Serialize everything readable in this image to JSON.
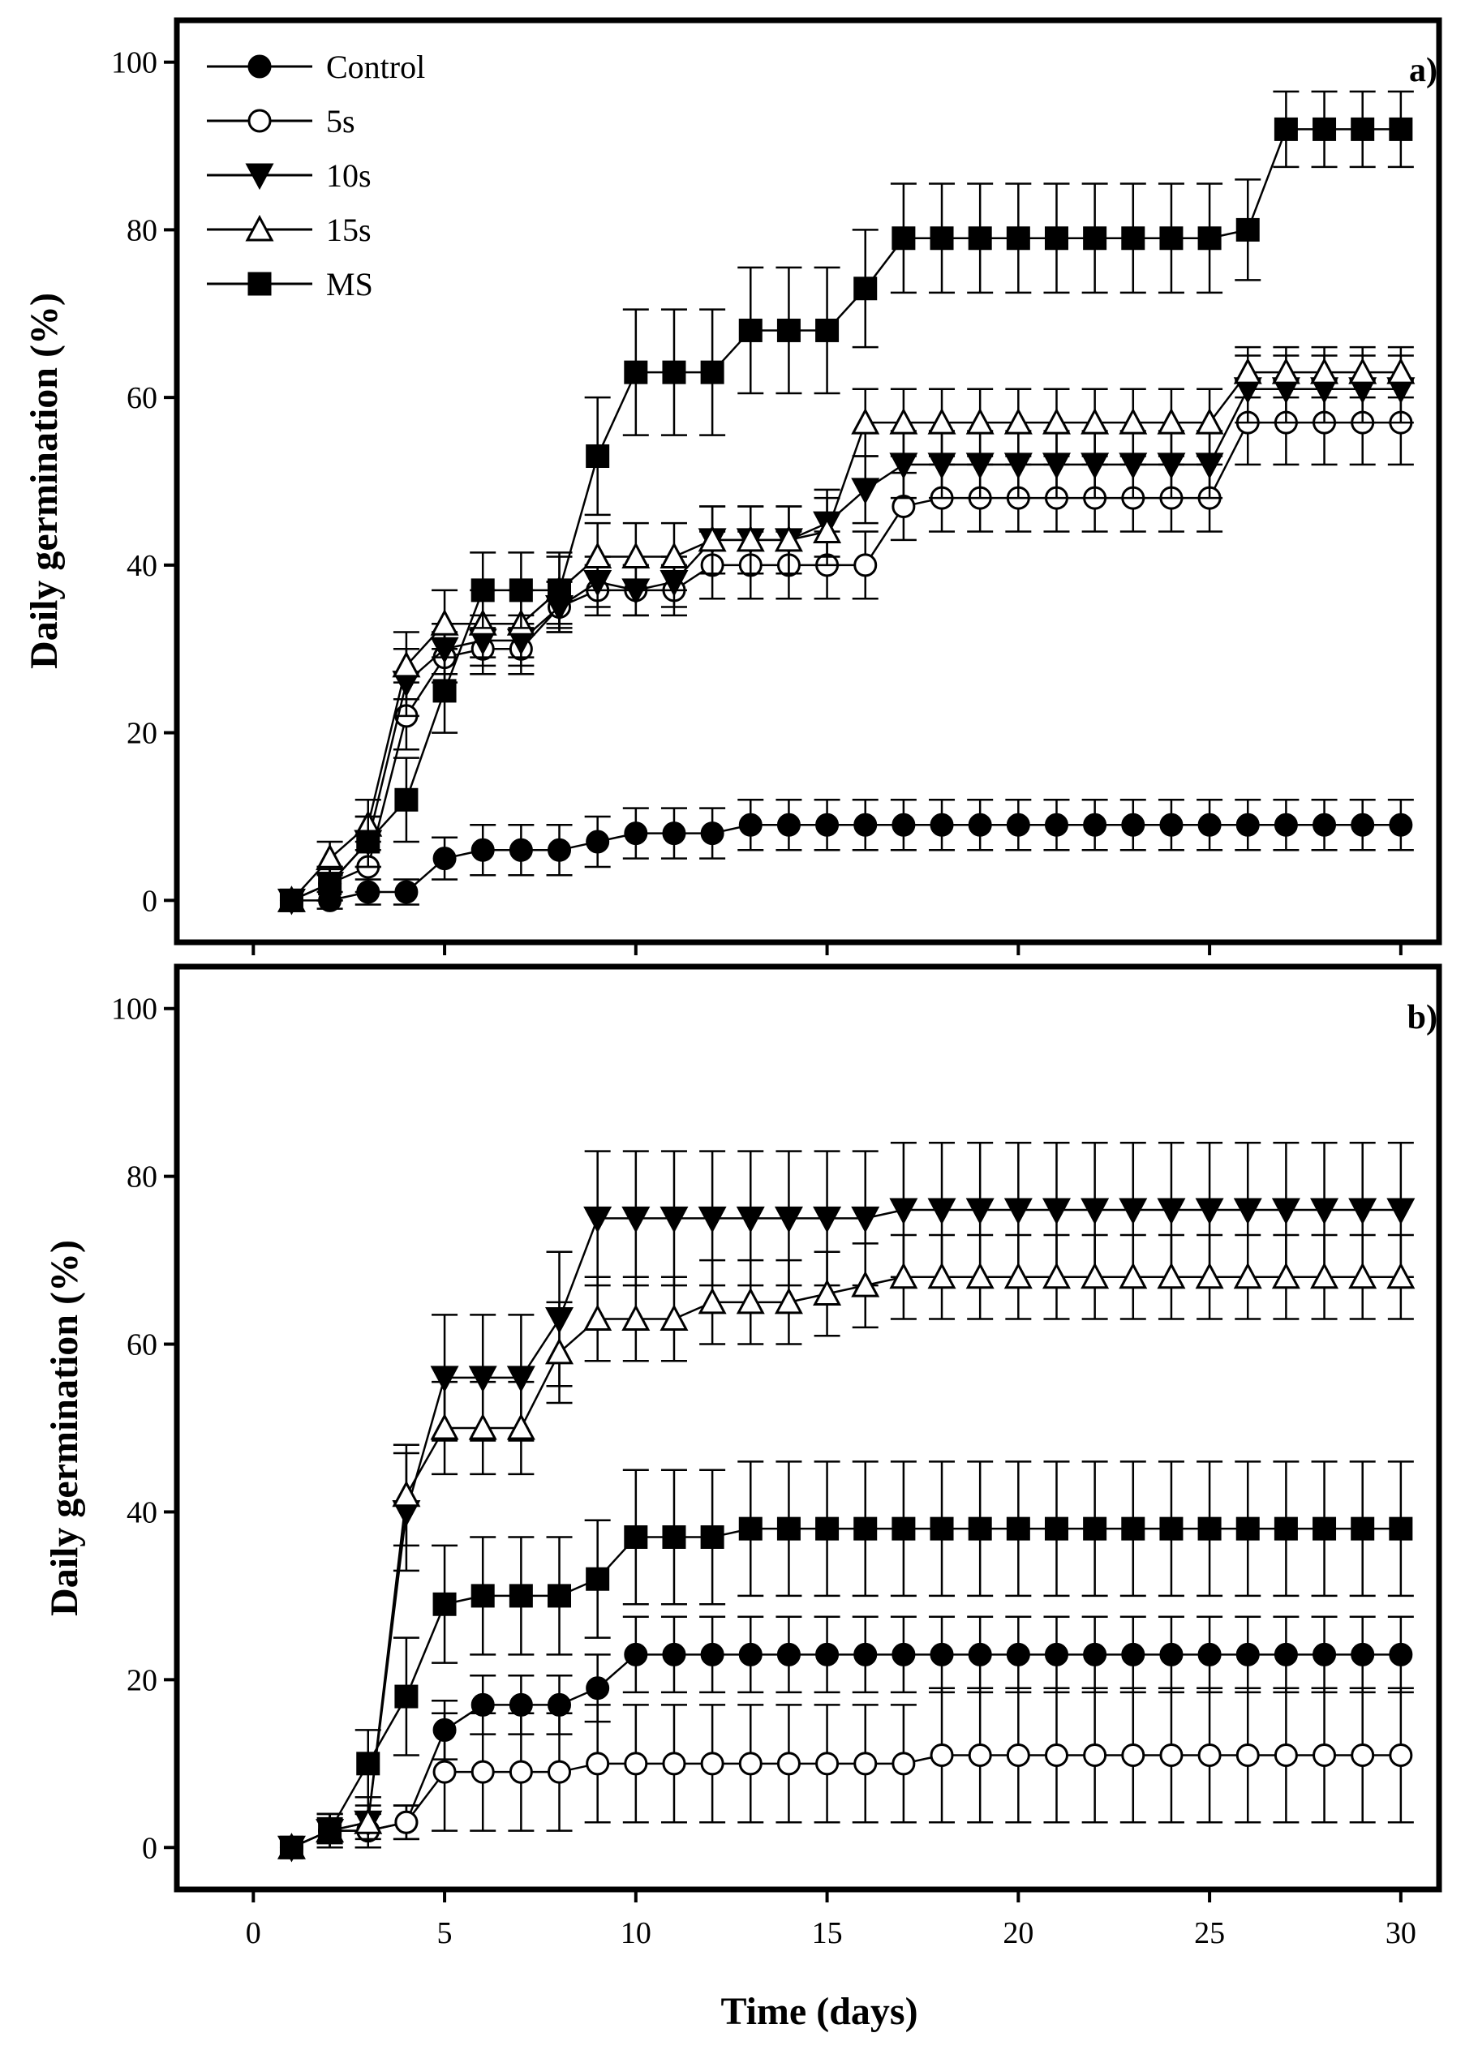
{
  "chart_data": {
    "type": "line",
    "xlabel": "Time (days)",
    "ylabel": "Daily germination (%)",
    "xlim": [
      -2,
      31
    ],
    "ylim": [
      -5,
      105
    ],
    "xticks": [
      0,
      5,
      10,
      15,
      20,
      25,
      30
    ],
    "yticks": [
      0,
      20,
      40,
      60,
      80,
      100
    ],
    "x": [
      1,
      2,
      3,
      4,
      5,
      6,
      7,
      8,
      9,
      10,
      11,
      12,
      13,
      14,
      15,
      16,
      17,
      18,
      19,
      20,
      21,
      22,
      23,
      24,
      25,
      26,
      27,
      28,
      29,
      30
    ],
    "legend": {
      "position": "top-left",
      "entries": [
        {
          "label": "Control",
          "marker": "circle-filled"
        },
        {
          "label": "5s",
          "marker": "circle-open"
        },
        {
          "label": "10s",
          "marker": "triangle-down-filled"
        },
        {
          "label": "15s",
          "marker": "triangle-up-open"
        },
        {
          "label": "MS",
          "marker": "square-filled"
        }
      ]
    },
    "panels": [
      {
        "label": "a)",
        "series": [
          {
            "name": "Control",
            "marker": "circle-filled",
            "values": [
              0,
              0,
              1,
              1,
              5,
              6,
              6,
              6,
              7,
              8,
              8,
              8,
              9,
              9,
              9,
              9,
              9,
              9,
              9,
              9,
              9,
              9,
              9,
              9,
              9,
              9,
              9,
              9,
              9,
              9
            ],
            "errors": [
              0,
              1,
              1.5,
              1.5,
              2.5,
              3,
              3,
              3,
              3,
              3,
              3,
              3,
              3,
              3,
              3,
              3,
              3,
              3,
              3,
              3,
              3,
              3,
              3,
              3,
              3,
              3,
              3,
              3,
              3,
              3
            ]
          },
          {
            "name": "5s",
            "marker": "circle-open",
            "values": [
              0,
              2,
              4,
              22,
              29,
              30,
              30,
              35,
              37,
              37,
              37,
              40,
              40,
              40,
              40,
              40,
              47,
              48,
              48,
              48,
              48,
              48,
              48,
              48,
              48,
              57,
              57,
              57,
              57,
              57
            ],
            "errors": [
              0,
              2,
              3,
              4,
              3,
              3,
              3,
              3,
              3,
              3,
              3,
              4,
              4,
              4,
              4,
              4,
              4,
              4,
              4,
              4,
              4,
              4,
              4,
              4,
              4,
              5,
              5,
              5,
              5,
              5
            ]
          },
          {
            "name": "10s",
            "marker": "triangle-down-filled",
            "values": [
              0,
              2,
              7,
              26,
              30,
              31,
              31,
              35,
              38,
              37,
              38,
              43,
              43,
              43,
              45,
              49,
              52,
              52,
              52,
              52,
              52,
              52,
              52,
              52,
              52,
              61,
              61,
              61,
              61,
              61
            ],
            "errors": [
              0,
              2,
              3,
              4,
              3,
              3,
              3,
              3,
              3,
              3,
              3,
              4,
              4,
              4,
              4,
              4,
              4,
              4,
              4,
              4,
              4,
              4,
              4,
              4,
              4,
              4,
              4,
              4,
              4,
              4
            ]
          },
          {
            "name": "15s",
            "marker": "triangle-up-open",
            "values": [
              0,
              5,
              9,
              28,
              33,
              33,
              33,
              37,
              41,
              41,
              41,
              43,
              43,
              43,
              44,
              57,
              57,
              57,
              57,
              57,
              57,
              57,
              57,
              57,
              57,
              63,
              63,
              63,
              63,
              63
            ],
            "errors": [
              0,
              2,
              3,
              4,
              4,
              4,
              4,
              4,
              4,
              4,
              4,
              4,
              4,
              4,
              4,
              4,
              4,
              4,
              4,
              4,
              4,
              4,
              4,
              4,
              4,
              3,
              3,
              3,
              3,
              3
            ]
          },
          {
            "name": "MS",
            "marker": "square-filled",
            "values": [
              0,
              2,
              7,
              12,
              25,
              37,
              37,
              37,
              53,
              63,
              63,
              63,
              68,
              68,
              68,
              73,
              79,
              79,
              79,
              79,
              79,
              79,
              79,
              79,
              79,
              80,
              92,
              92,
              92,
              92
            ],
            "errors": [
              0,
              2,
              3,
              5,
              5,
              4.5,
              4.5,
              4.5,
              7,
              7.5,
              7.5,
              7.5,
              7.5,
              7.5,
              7.5,
              7,
              6.5,
              6.5,
              6.5,
              6.5,
              6.5,
              6.5,
              6.5,
              6.5,
              6.5,
              6,
              4.5,
              4.5,
              4.5,
              4.5
            ]
          }
        ]
      },
      {
        "label": "b)",
        "series": [
          {
            "name": "Control",
            "marker": "circle-filled",
            "values": [
              0,
              2,
              2,
              3,
              14,
              17,
              17,
              17,
              19,
              23,
              23,
              23,
              23,
              23,
              23,
              23,
              23,
              23,
              23,
              23,
              23,
              23,
              23,
              23,
              23,
              23,
              23,
              23,
              23,
              23
            ],
            "errors": [
              0,
              1.5,
              2,
              2,
              3.5,
              3.5,
              3.5,
              3.5,
              4,
              4.5,
              4.5,
              4.5,
              4.5,
              4.5,
              4.5,
              4.5,
              4.5,
              4.5,
              4.5,
              4.5,
              4.5,
              4.5,
              4.5,
              4.5,
              4.5,
              4.5,
              4.5,
              4.5,
              4.5,
              4.5
            ]
          },
          {
            "name": "5s",
            "marker": "circle-open",
            "values": [
              0,
              2,
              2,
              3,
              9,
              9,
              9,
              9,
              10,
              10,
              10,
              10,
              10,
              10,
              10,
              10,
              10,
              11,
              11,
              11,
              11,
              11,
              11,
              11,
              11,
              11,
              11,
              11,
              11,
              11
            ],
            "errors": [
              0,
              2,
              2,
              2,
              7,
              7,
              7,
              7,
              7,
              7,
              7,
              7,
              7,
              7,
              7,
              7,
              7,
              8,
              8,
              8,
              8,
              8,
              8,
              8,
              8,
              8,
              8,
              8,
              8,
              8
            ]
          },
          {
            "name": "10s",
            "marker": "triangle-down-filled",
            "values": [
              0,
              2,
              3,
              40,
              56,
              56,
              56,
              63,
              75,
              75,
              75,
              75,
              75,
              75,
              75,
              75,
              76,
              76,
              76,
              76,
              76,
              76,
              76,
              76,
              76,
              76,
              76,
              76,
              76,
              76
            ],
            "errors": [
              0,
              2,
              3,
              7,
              7.5,
              7.5,
              7.5,
              8,
              8,
              8,
              8,
              8,
              8,
              8,
              8,
              8,
              8,
              8,
              8,
              8,
              8,
              8,
              8,
              8,
              8,
              8,
              8,
              8,
              8,
              8
            ]
          },
          {
            "name": "15s",
            "marker": "triangle-up-open",
            "values": [
              0,
              2,
              3,
              42,
              50,
              50,
              50,
              59,
              63,
              63,
              63,
              65,
              65,
              65,
              66,
              67,
              68,
              68,
              68,
              68,
              68,
              68,
              68,
              68,
              68,
              68,
              68,
              68,
              68,
              68
            ],
            "errors": [
              0,
              2,
              2,
              6,
              5.5,
              5.5,
              5.5,
              6,
              5,
              5,
              5,
              5,
              5,
              5,
              5,
              5,
              5,
              5,
              5,
              5,
              5,
              5,
              5,
              5,
              5,
              5,
              5,
              5,
              5,
              5
            ]
          },
          {
            "name": "MS",
            "marker": "square-filled",
            "values": [
              0,
              2,
              10,
              18,
              29,
              30,
              30,
              30,
              32,
              37,
              37,
              37,
              38,
              38,
              38,
              38,
              38,
              38,
              38,
              38,
              38,
              38,
              38,
              38,
              38,
              38,
              38,
              38,
              38,
              38
            ],
            "errors": [
              0,
              2,
              4,
              7,
              7,
              7,
              7,
              7,
              7,
              8,
              8,
              8,
              8,
              8,
              8,
              8,
              8,
              8,
              8,
              8,
              8,
              8,
              8,
              8,
              8,
              8,
              8,
              8,
              8,
              8
            ]
          }
        ]
      }
    ]
  }
}
